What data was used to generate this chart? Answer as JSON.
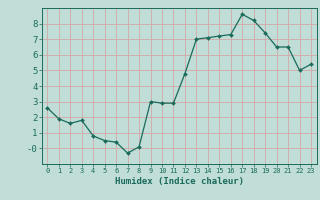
{
  "x": [
    0,
    1,
    2,
    3,
    4,
    5,
    6,
    7,
    8,
    9,
    10,
    11,
    12,
    13,
    14,
    15,
    16,
    17,
    18,
    19,
    20,
    21,
    22,
    23
  ],
  "y": [
    2.6,
    1.9,
    1.6,
    1.8,
    0.8,
    0.5,
    0.4,
    -0.3,
    0.1,
    3.0,
    2.9,
    2.9,
    4.8,
    7.0,
    7.1,
    7.2,
    7.3,
    8.6,
    8.2,
    7.4,
    6.5,
    6.5,
    5.0,
    5.4
  ],
  "line_color": "#1a6b5a",
  "marker_color": "#1a6b5a",
  "bg_color": "#c0ddd8",
  "grid_color": "#aacac4",
  "axis_color": "#1a6b5a",
  "xlabel": "Humidex (Indice chaleur)",
  "ylim": [
    -1.0,
    9.0
  ],
  "xlim": [
    -0.5,
    23.5
  ],
  "yticks": [
    0,
    1,
    2,
    3,
    4,
    5,
    6,
    7,
    8
  ],
  "xticks": [
    0,
    1,
    2,
    3,
    4,
    5,
    6,
    7,
    8,
    9,
    10,
    11,
    12,
    13,
    14,
    15,
    16,
    17,
    18,
    19,
    20,
    21,
    22,
    23
  ],
  "font_color": "#1a6b5a"
}
